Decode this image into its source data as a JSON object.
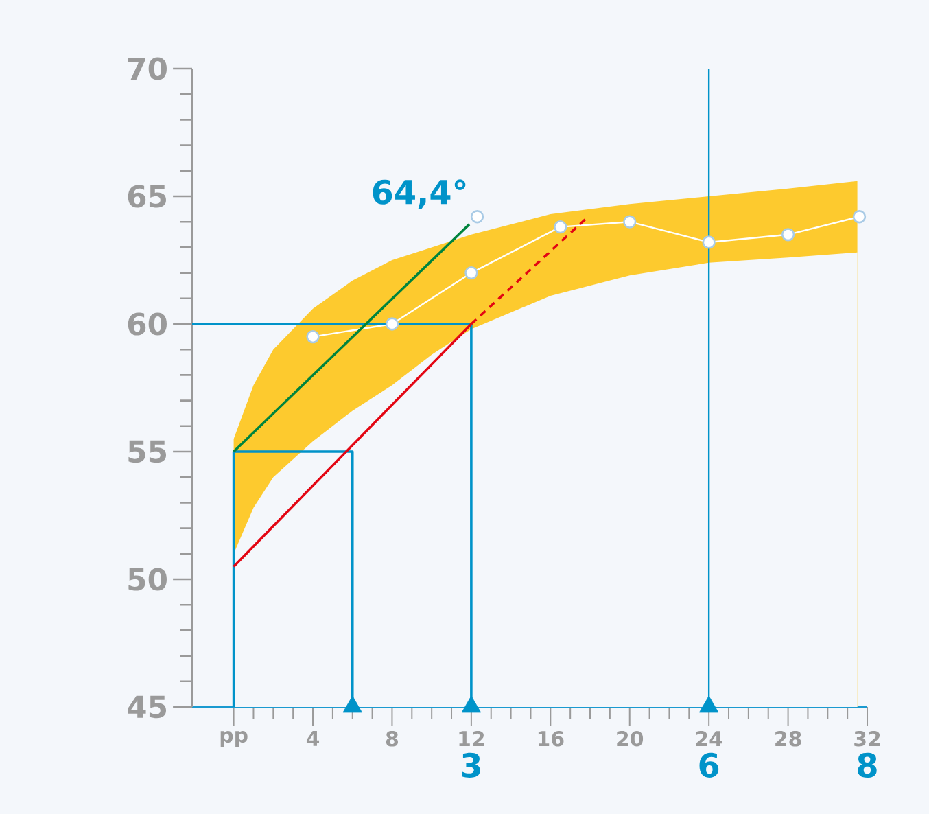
{
  "chart_data": {
    "type": "line",
    "xlim": [
      -2.1,
      32
    ],
    "ylim": [
      45,
      70
    ],
    "xticks": [
      {
        "value": 0,
        "label": "pp"
      },
      4,
      8,
      12,
      16,
      20,
      24,
      28,
      32
    ],
    "yticks": [
      45,
      50,
      55,
      60,
      65,
      70
    ],
    "x2lim": [
      -0.525,
      8
    ],
    "x2ticks": [
      3,
      6,
      8
    ],
    "series": [
      {
        "type": "area",
        "color": "#fdca2e",
        "x": [
          0,
          1,
          2,
          4,
          6,
          8,
          10,
          12,
          16,
          20,
          24,
          28,
          31.5
        ],
        "values": [
          55.5,
          57.6,
          59.0,
          60.6,
          61.7,
          62.5,
          63.0,
          63.5,
          64.3,
          64.7,
          65.0,
          65.3,
          65.6
        ]
      },
      {
        "type": "area",
        "color": "#f4f7fb",
        "x": [
          0,
          1,
          2,
          4,
          6,
          8,
          10,
          12,
          16,
          20,
          24,
          28,
          31.5
        ],
        "values": [
          51.0,
          52.8,
          54.0,
          55.4,
          56.6,
          57.6,
          58.8,
          59.8,
          61.1,
          61.9,
          62.4,
          62.6,
          62.8
        ]
      },
      {
        "color": "#ffffff",
        "marker": "circle",
        "x": [
          4,
          8,
          12,
          16.5,
          20,
          24,
          28,
          31.6
        ],
        "values": [
          59.5,
          60.0,
          62.0,
          63.8,
          64.0,
          63.2,
          63.5,
          64.2
        ]
      },
      {
        "color": "#0093c9",
        "x": [
          -2.1,
          12,
          12
        ],
        "values": [
          60,
          60,
          45
        ]
      },
      {
        "color": "#0093c9",
        "x": [
          0,
          0,
          6,
          6
        ],
        "values": [
          45,
          55,
          55,
          45
        ]
      },
      {
        "color": "#00843d",
        "x": [
          0,
          11.9
        ],
        "values": [
          55,
          63.9
        ]
      },
      {
        "color": "#e30613",
        "x": [
          0,
          12
        ],
        "values": [
          50.5,
          60
        ]
      },
      {
        "color": "#e30613",
        "line_style": "dashed",
        "x": [
          12,
          17.9
        ],
        "values": [
          60,
          64.2
        ]
      },
      {
        "type": "scatter",
        "color": "#ffffff",
        "marker": "circle",
        "x": [
          12.3
        ],
        "values": [
          64.2
        ]
      },
      {
        "type": "scatter",
        "color": "#0093c9",
        "marker": "triangle",
        "x": [
          6,
          12,
          24
        ],
        "values": [
          45,
          45,
          45
        ]
      }
    ],
    "ref_lines": [
      {
        "axis": "x",
        "value": 24,
        "color": "#0093c9"
      }
    ],
    "annotations": [
      {
        "text": "64,4°",
        "x": 12,
        "y": 64.4
      }
    ]
  }
}
